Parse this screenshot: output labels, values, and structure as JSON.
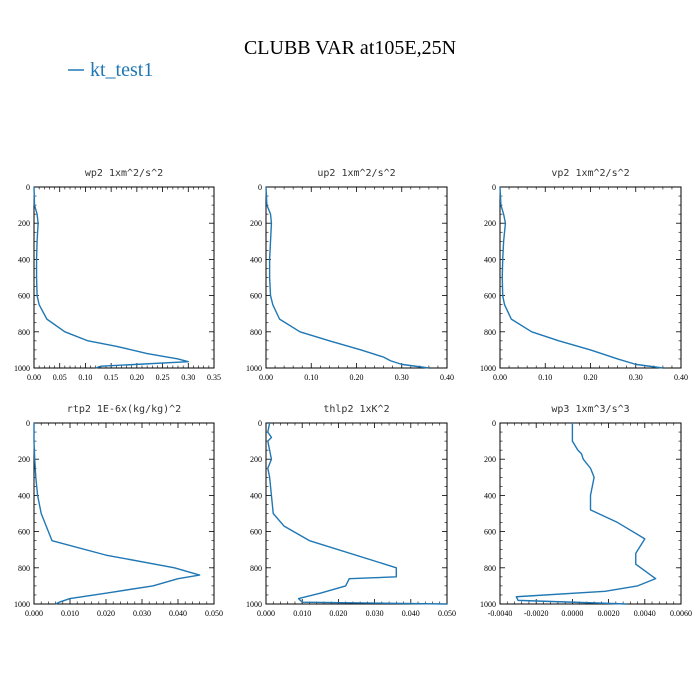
{
  "figure": {
    "title": "CLUBB VAR at105E,25N",
    "line_color": "#1f77b4",
    "legend": {
      "label": "kt_test1"
    }
  },
  "chart_data": [
    {
      "type": "line",
      "title": "wp2  1xm^2/s^2",
      "xlim": [
        0,
        0.35
      ],
      "ylim": [
        1000,
        0
      ],
      "xticks": [
        0.0,
        0.05,
        0.1,
        0.15,
        0.2,
        0.25,
        0.3,
        0.35
      ],
      "xtick_labels": [
        "0.00",
        "0.05",
        "0.10",
        "0.15",
        "0.20",
        "0.25",
        "0.30",
        "0.35"
      ],
      "yticks": [
        0,
        200,
        400,
        600,
        800,
        1000
      ],
      "ytick_labels": [
        "0",
        "200",
        "400",
        "600",
        "800",
        "1000"
      ],
      "series": [
        {
          "x": [
            0.0,
            0.001,
            0.006,
            0.008,
            0.006,
            0.005,
            0.005,
            0.006,
            0.01,
            0.025,
            0.06,
            0.105,
            0.16,
            0.22,
            0.28,
            0.3,
            0.2,
            0.13,
            0.12
          ],
          "y": [
            0,
            100,
            150,
            200,
            300,
            400,
            500,
            600,
            650,
            730,
            800,
            850,
            880,
            920,
            950,
            965,
            980,
            990,
            1000
          ]
        }
      ]
    },
    {
      "type": "line",
      "title": "up2  1xm^2/s^2",
      "xlim": [
        0,
        0.4
      ],
      "ylim": [
        1000,
        0
      ],
      "xticks": [
        0.0,
        0.1,
        0.2,
        0.3,
        0.4
      ],
      "xtick_labels": [
        "0.00",
        "0.10",
        "0.20",
        "0.30",
        "0.40"
      ],
      "yticks": [
        0,
        200,
        400,
        600,
        800,
        1000
      ],
      "ytick_labels": [
        "0",
        "200",
        "400",
        "600",
        "800",
        "1000"
      ],
      "series": [
        {
          "x": [
            0.0,
            0.002,
            0.01,
            0.012,
            0.01,
            0.008,
            0.008,
            0.01,
            0.015,
            0.03,
            0.075,
            0.14,
            0.21,
            0.26,
            0.275,
            0.3,
            0.36
          ],
          "y": [
            0,
            100,
            150,
            200,
            300,
            400,
            500,
            600,
            650,
            730,
            800,
            850,
            900,
            940,
            960,
            980,
            1000
          ]
        }
      ]
    },
    {
      "type": "line",
      "title": "vp2  1xm^2/s^2",
      "xlim": [
        0,
        0.4
      ],
      "ylim": [
        1000,
        0
      ],
      "xticks": [
        0.0,
        0.1,
        0.2,
        0.3,
        0.4
      ],
      "xtick_labels": [
        "0.00",
        "0.10",
        "0.20",
        "0.30",
        "0.40"
      ],
      "yticks": [
        0,
        200,
        400,
        600,
        800,
        1000
      ],
      "ytick_labels": [
        "0",
        "200",
        "400",
        "600",
        "800",
        "1000"
      ],
      "series": [
        {
          "x": [
            0.0,
            0.002,
            0.008,
            0.012,
            0.008,
            0.006,
            0.005,
            0.006,
            0.01,
            0.025,
            0.07,
            0.13,
            0.2,
            0.26,
            0.3,
            0.36
          ],
          "y": [
            0,
            100,
            150,
            200,
            300,
            400,
            500,
            600,
            650,
            730,
            800,
            850,
            900,
            950,
            980,
            1000
          ]
        }
      ]
    },
    {
      "type": "line",
      "title": "rtp2  1E-6x(kg/kg)^2",
      "xlim": [
        0,
        0.05
      ],
      "ylim": [
        1000,
        0
      ],
      "xticks": [
        0.0,
        0.01,
        0.02,
        0.03,
        0.04,
        0.05
      ],
      "xtick_labels": [
        "0.000",
        "0.010",
        "0.020",
        "0.030",
        "0.040",
        "0.050"
      ],
      "yticks": [
        0,
        200,
        400,
        600,
        800,
        1000
      ],
      "ytick_labels": [
        "0",
        "200",
        "400",
        "600",
        "800",
        "1000"
      ],
      "series": [
        {
          "x": [
            0.0,
            0.0,
            0.0002,
            0.0005,
            0.001,
            0.002,
            0.005,
            0.02,
            0.039,
            0.046,
            0.04,
            0.033,
            0.02,
            0.01,
            0.007,
            0.006
          ],
          "y": [
            0,
            100,
            200,
            300,
            400,
            500,
            650,
            730,
            800,
            840,
            860,
            900,
            940,
            970,
            990,
            1000
          ]
        }
      ]
    },
    {
      "type": "line",
      "title": "thlp2  1xK^2",
      "xlim": [
        0,
        0.05
      ],
      "ylim": [
        1000,
        0
      ],
      "xticks": [
        0.0,
        0.01,
        0.02,
        0.03,
        0.04,
        0.05
      ],
      "xtick_labels": [
        "0.000",
        "0.010",
        "0.020",
        "0.030",
        "0.040",
        "0.050"
      ],
      "yticks": [
        0,
        200,
        400,
        600,
        800,
        1000
      ],
      "ytick_labels": [
        "0",
        "200",
        "400",
        "600",
        "800",
        "1000"
      ],
      "series": [
        {
          "x": [
            0.001,
            0.0005,
            0.0015,
            0.0005,
            0.001,
            0.0015,
            0.0005,
            0.001,
            0.0015,
            0.002,
            0.005,
            0.012,
            0.036,
            0.036,
            0.023,
            0.022,
            0.015,
            0.009,
            0.01,
            0.05
          ],
          "y": [
            0,
            50,
            80,
            100,
            150,
            200,
            250,
            300,
            400,
            500,
            570,
            650,
            800,
            850,
            860,
            900,
            940,
            970,
            990,
            1000
          ]
        }
      ]
    },
    {
      "type": "line",
      "title": "wp3  1xm^3/s^3",
      "xlim": [
        -0.004,
        0.006
      ],
      "ylim": [
        1000,
        0
      ],
      "xticks": [
        -0.004,
        -0.002,
        0.0,
        0.002,
        0.004,
        0.006
      ],
      "xtick_labels": [
        "-0.0040",
        "-0.0020",
        "0.0000",
        "0.0020",
        "0.0040",
        "0.0060"
      ],
      "yticks": [
        0,
        200,
        400,
        600,
        800,
        1000
      ],
      "ytick_labels": [
        "0",
        "200",
        "400",
        "600",
        "800",
        "1000"
      ],
      "series": [
        {
          "x": [
            0.0,
            0.0,
            0.0003,
            0.0005,
            0.0006,
            0.001,
            0.0012,
            0.0011,
            0.001,
            0.001,
            0.0025,
            0.004,
            0.0035,
            0.0035,
            0.0046,
            0.0036,
            0.0018,
            -0.0031,
            -0.003,
            0.003
          ],
          "y": [
            0,
            100,
            150,
            170,
            200,
            250,
            300,
            350,
            400,
            480,
            550,
            640,
            720,
            780,
            860,
            900,
            930,
            960,
            980,
            1000
          ]
        }
      ]
    }
  ]
}
